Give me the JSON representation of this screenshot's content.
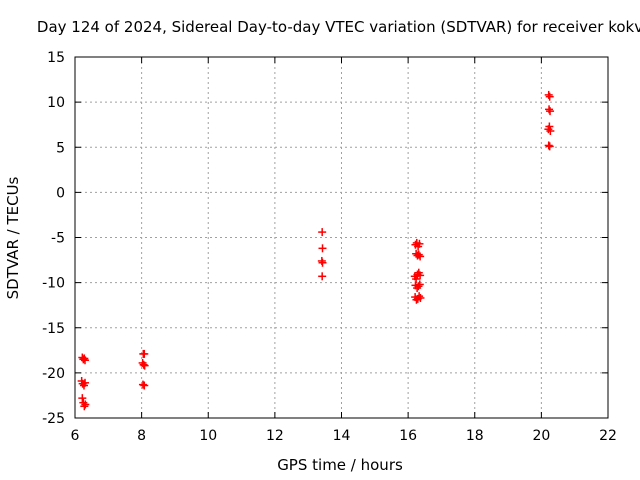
{
  "chart_data": {
    "type": "scatter",
    "title": "Day 124 of 2024, Sidereal Day-to-day VTEC variation (SDTVAR) for receiver kokv",
    "xlabel": "GPS time / hours",
    "ylabel": "SDTVAR / TECUs",
    "xlim": [
      6,
      22
    ],
    "ylim": [
      -25,
      15
    ],
    "xticks": [
      6,
      8,
      10,
      12,
      14,
      16,
      18,
      20,
      22
    ],
    "yticks": [
      -25,
      -20,
      -15,
      -10,
      -5,
      0,
      5,
      10,
      15
    ],
    "grid": true,
    "marker": "plus",
    "color": "#ff0000",
    "series": [
      {
        "name": "SDTVAR",
        "x": [
          6.22,
          6.25,
          6.28,
          6.3,
          6.2,
          6.23,
          6.27,
          6.3,
          6.22,
          6.25,
          6.28,
          6.31,
          8.05,
          8.08,
          8.03,
          8.06,
          8.09,
          8.04,
          8.08,
          13.42,
          13.43,
          13.41,
          13.43,
          13.42,
          16.22,
          16.26,
          16.3,
          16.34,
          16.24,
          16.28,
          16.32,
          16.36,
          16.2,
          16.24,
          16.28,
          16.32,
          16.36,
          16.22,
          16.27,
          16.31,
          16.35,
          16.21,
          16.25,
          16.29,
          16.33,
          16.37,
          20.22,
          20.25,
          20.23,
          20.26,
          20.21,
          20.24,
          20.27,
          20.22,
          20.25
        ],
        "y": [
          -18.3,
          -18.5,
          -18.4,
          -18.6,
          -20.9,
          -21.2,
          -21.4,
          -21.1,
          -22.8,
          -23.3,
          -23.7,
          -23.5,
          -17.9,
          -17.9,
          -18.9,
          -19.1,
          -19.2,
          -21.3,
          -21.4,
          -4.4,
          -6.2,
          -7.6,
          -7.8,
          -9.3,
          -5.8,
          -5.6,
          -6.0,
          -5.7,
          -6.8,
          -7.0,
          -6.9,
          -7.1,
          -9.3,
          -9.6,
          -9.1,
          -8.9,
          -9.2,
          -10.3,
          -10.6,
          -10.4,
          -10.2,
          -11.6,
          -11.9,
          -11.8,
          -11.5,
          -11.7,
          10.8,
          10.6,
          9.2,
          9.0,
          7.0,
          7.3,
          6.8,
          5.2,
          5.1
        ]
      }
    ]
  }
}
